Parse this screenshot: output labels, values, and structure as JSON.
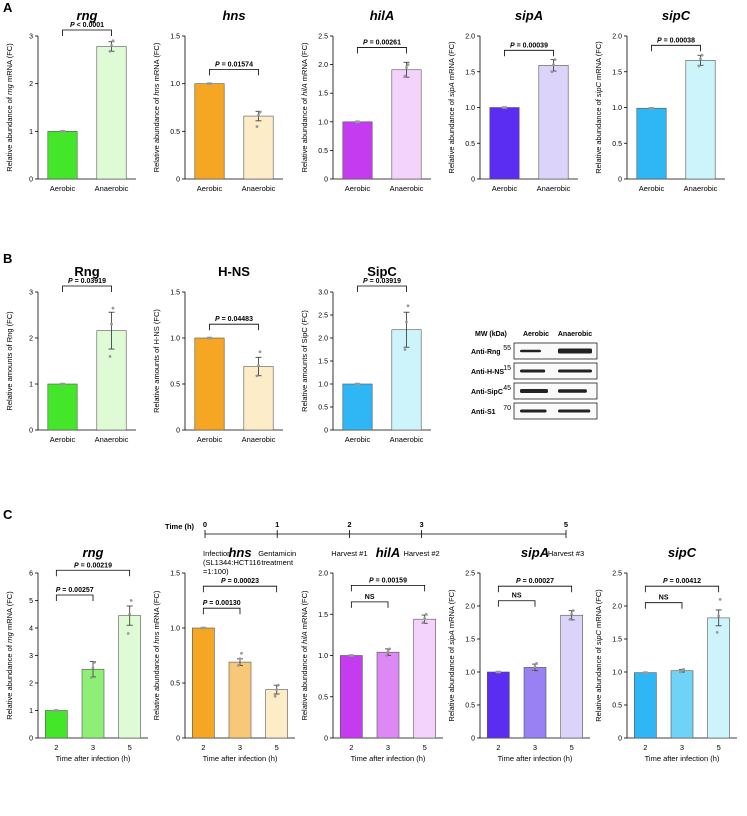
{
  "panels": {
    "A": "A",
    "B": "B",
    "C": "C"
  },
  "colors": {
    "rng": [
      "#44e62a",
      "#dffbd6"
    ],
    "hns": [
      "#f5a623",
      "#fcecc8"
    ],
    "hilA": [
      "#c53cf0",
      "#f3d2fb"
    ],
    "sipA": [
      "#5b2cf2",
      "#dcd3fb"
    ],
    "sipC": [
      "#2fb6f5",
      "#cdf4fb"
    ],
    "rngC": [
      "#44e62a",
      "#8fee76",
      "#dffbd6"
    ],
    "hnsC": [
      "#f5a623",
      "#f7c878",
      "#fcecc8"
    ],
    "hilAC": [
      "#c53cf0",
      "#dd88f5",
      "#f3d2fb"
    ],
    "sipAC": [
      "#5b2cf2",
      "#9980f3",
      "#dcd3fb"
    ],
    "sipCC": [
      "#2fb6f5",
      "#6fd2f7",
      "#cdf4fb"
    ]
  },
  "chart_data": [
    {
      "type": "bar",
      "panel": "A",
      "title": "rng",
      "ylabel_pre": "Relative abundance of ",
      "ylabel_gene": "rng",
      "ylabel_post": " mRNA (FC)",
      "ylim": [
        0,
        3
      ],
      "ticks": [
        "0",
        "1",
        "2",
        "3"
      ],
      "categories": [
        "Aerobic",
        "Anaerobic"
      ],
      "values": [
        1.0,
        2.78
      ],
      "errors": [
        0,
        0.1
      ],
      "colorKey": "rng",
      "points": [
        [
          1,
          1,
          1
        ],
        [
          2.68,
          2.8,
          2.9
        ]
      ],
      "comparisons": [
        {
          "label": "P < 0.0001",
          "from": 0,
          "to": 1,
          "level": 3.2
        }
      ]
    },
    {
      "type": "bar",
      "panel": "A",
      "title": "hns",
      "ylabel_pre": "Relative abundance of ",
      "ylabel_gene": "hns",
      "ylabel_post": " mRNA (FC)",
      "ylim": [
        0,
        1.5
      ],
      "ticks": [
        "0",
        "0.5",
        "1.0",
        "1.5"
      ],
      "categories": [
        "Aerobic",
        "Anaerobic"
      ],
      "values": [
        1.0,
        0.66
      ],
      "errors": [
        0,
        0.05
      ],
      "colorKey": "hns",
      "points": [
        [
          1,
          1,
          1
        ],
        [
          0.55,
          0.67,
          0.7
        ]
      ],
      "comparisons": [
        {
          "label": "P = 0.01574",
          "from": 0,
          "to": 1,
          "level": 1.15
        }
      ]
    },
    {
      "type": "bar",
      "panel": "A",
      "title": "hilA",
      "ylabel_pre": "Relative abundance of ",
      "ylabel_gene": "hilA",
      "ylabel_post": " mRNA (FC)",
      "ylim": [
        0,
        2.5
      ],
      "ticks": [
        "0",
        "0.5",
        "1.0",
        "1.5",
        "2.0",
        "2.5"
      ],
      "categories": [
        "Aerobic",
        "Anaerobic"
      ],
      "values": [
        1.0,
        1.91
      ],
      "errors": [
        0,
        0.13
      ],
      "colorKey": "hilA",
      "points": [
        [
          1,
          1,
          1
        ],
        [
          1.8,
          1.95,
          2.0
        ]
      ],
      "comparisons": [
        {
          "label": "P = 0.00261",
          "from": 0,
          "to": 1,
          "level": 2.3
        }
      ]
    },
    {
      "type": "bar",
      "panel": "A",
      "title": "sipA",
      "ylabel_pre": "Relative abundance of ",
      "ylabel_gene": "sipA",
      "ylabel_post": " mRNA (FC)",
      "ylim": [
        0,
        2.0
      ],
      "ticks": [
        "0",
        "0.5",
        "1.0",
        "1.5",
        "2.0"
      ],
      "categories": [
        "Aerobic",
        "Anaerobic"
      ],
      "values": [
        1.0,
        1.59
      ],
      "errors": [
        0,
        0.08
      ],
      "colorKey": "sipA",
      "points": [
        [
          1,
          1,
          1
        ],
        [
          1.5,
          1.6,
          1.67
        ]
      ],
      "comparisons": [
        {
          "label": "P = 0.00039",
          "from": 0,
          "to": 1,
          "level": 1.8
        }
      ]
    },
    {
      "type": "bar",
      "panel": "A",
      "title": "sipC",
      "ylabel_pre": "Relative abundance of ",
      "ylabel_gene": "sipC",
      "ylabel_post": " mRNA (FC)",
      "ylim": [
        0,
        2.0
      ],
      "ticks": [
        "0",
        "0.5",
        "1.0",
        "1.5",
        "2.0"
      ],
      "categories": [
        "Aerobic",
        "Anaerobic"
      ],
      "values": [
        0.99,
        1.66
      ],
      "errors": [
        0,
        0.07
      ],
      "colorKey": "sipC",
      "points": [
        [
          0.99,
          0.99,
          0.99
        ],
        [
          1.58,
          1.68,
          1.73
        ]
      ],
      "comparisons": [
        {
          "label": "P = 0.00038",
          "from": 0,
          "to": 1,
          "level": 1.87
        }
      ]
    },
    {
      "type": "bar",
      "panel": "B",
      "title": "Rng",
      "ylabel_pre": "Relative amounts of Rng (FC)",
      "ylabel_gene": "",
      "ylabel_post": "",
      "ylim": [
        0,
        3
      ],
      "ticks": [
        "0",
        "1",
        "2",
        "3"
      ],
      "categories": [
        "Aerobic",
        "Anaerobic"
      ],
      "values": [
        1.0,
        2.16
      ],
      "errors": [
        0,
        0.4
      ],
      "colorKey": "rng",
      "points": [
        [
          1,
          1,
          1
        ],
        [
          1.6,
          2.3,
          2.65
        ]
      ],
      "comparisons": [
        {
          "label": "P = 0.03919",
          "from": 0,
          "to": 1,
          "level": 3.2
        }
      ]
    },
    {
      "type": "bar",
      "panel": "B",
      "title": "H-NS",
      "ylabel_pre": "Relative amounts of H-NS (FC)",
      "ylabel_gene": "",
      "ylabel_post": "",
      "ylim": [
        0,
        1.5
      ],
      "ticks": [
        "0",
        "0.5",
        "1.0",
        "1.5"
      ],
      "categories": [
        "Aerobic",
        "Anaerobic"
      ],
      "values": [
        1.0,
        0.69
      ],
      "errors": [
        0,
        0.1
      ],
      "colorKey": "hns",
      "points": [
        [
          1,
          1,
          1
        ],
        [
          0.59,
          0.7,
          0.85
        ]
      ],
      "comparisons": [
        {
          "label": "P = 0.04483",
          "from": 0,
          "to": 1,
          "level": 1.15
        }
      ]
    },
    {
      "type": "bar",
      "panel": "B",
      "title": "SipC",
      "ylabel_pre": "Relative amounts of SipC (FC)",
      "ylabel_gene": "",
      "ylabel_post": "",
      "ylim": [
        0,
        3
      ],
      "ticks": [
        "0",
        "0.5",
        "1.0",
        "1.5",
        "2.0",
        "2.5",
        "3.0"
      ],
      "categories": [
        "Aerobic",
        "Anaerobic"
      ],
      "values": [
        1.0,
        2.18
      ],
      "errors": [
        0,
        0.38
      ],
      "colorKey": "sipC",
      "points": [
        [
          1,
          1,
          1
        ],
        [
          1.75,
          2.35,
          2.7
        ]
      ],
      "comparisons": [
        {
          "label": "P = 0.03919",
          "from": 0,
          "to": 1,
          "level": 3.2
        }
      ]
    },
    {
      "type": "bar",
      "panel": "C",
      "title": "rng",
      "ylabel_pre": "Relative abundance of ",
      "ylabel_gene": "rng",
      "ylabel_post": " mRNA (FC)",
      "ylim": [
        0,
        6
      ],
      "ticks": [
        "0",
        "1",
        "2",
        "3",
        "4",
        "5",
        "6"
      ],
      "categories": [
        "2",
        "3",
        "5"
      ],
      "values": [
        1.0,
        2.5,
        4.45
      ],
      "errors": [
        0,
        0.28,
        0.35
      ],
      "colorKey": "rngC",
      "xlabel": "Time after infection (h)",
      "points": [
        [
          1,
          1,
          1
        ],
        [
          2.2,
          2.55,
          2.75
        ],
        [
          3.8,
          4.5,
          5.0
        ]
      ],
      "comparisons": [
        {
          "label": "P = 0.00257",
          "from": 0,
          "to": 1,
          "level": 5.2
        },
        {
          "label": "P = 0.00219",
          "from": 0,
          "to": 2,
          "level": 6.1
        }
      ]
    },
    {
      "type": "bar",
      "panel": "C",
      "title": "hns",
      "ylabel_pre": "Relative abundance of ",
      "ylabel_gene": "hns",
      "ylabel_post": " mRNA (FC)",
      "ylim": [
        0,
        1.5
      ],
      "ticks": [
        "0",
        "0.5",
        "1.0",
        "1.5"
      ],
      "categories": [
        "2",
        "3",
        "5"
      ],
      "values": [
        1.0,
        0.69,
        0.44
      ],
      "errors": [
        0,
        0.03,
        0.04
      ],
      "colorKey": "hnsC",
      "xlabel": "Time after infection (h)",
      "points": [
        [
          1,
          1,
          1
        ],
        [
          0.66,
          0.72,
          0.77
        ],
        [
          0.38,
          0.44,
          0.48
        ]
      ],
      "comparisons": [
        {
          "label": "P = 0.00130",
          "from": 0,
          "to": 1,
          "level": 1.18
        },
        {
          "label": "P = 0.00023",
          "from": 0,
          "to": 2,
          "level": 1.38
        }
      ]
    },
    {
      "type": "bar",
      "panel": "C",
      "title": "hilA",
      "ylabel_pre": "Relative abundance of ",
      "ylabel_gene": "hilA",
      "ylabel_post": " mRNA (FC)",
      "ylim": [
        0,
        2.0
      ],
      "ticks": [
        "0",
        "0.5",
        "1.0",
        "1.5",
        "2.0"
      ],
      "categories": [
        "2",
        "3",
        "5"
      ],
      "values": [
        1.0,
        1.04,
        1.44
      ],
      "errors": [
        0,
        0.04,
        0.05
      ],
      "colorKey": "hilAC",
      "xlabel": "Time after infection (h)",
      "points": [
        [
          1,
          1,
          1
        ],
        [
          1.0,
          1.05,
          1.08
        ],
        [
          1.4,
          1.45,
          1.5
        ]
      ],
      "comparisons": [
        {
          "label": "NS",
          "from": 0,
          "to": 1,
          "level": 1.65
        },
        {
          "label": "P = 0.00159",
          "from": 0,
          "to": 2,
          "level": 1.85
        }
      ]
    },
    {
      "type": "bar",
      "panel": "C",
      "title": "sipA",
      "ylabel_pre": "Relative abundance of ",
      "ylabel_gene": "sipA",
      "ylabel_post": " mRNA (FC)",
      "ylim": [
        0,
        2.5
      ],
      "ticks": [
        "0",
        "0.5",
        "1.0",
        "1.5",
        "2.0",
        "2.5"
      ],
      "categories": [
        "2",
        "3",
        "5"
      ],
      "values": [
        1.0,
        1.07,
        1.86
      ],
      "errors": [
        0,
        0.05,
        0.07
      ],
      "colorKey": "sipAC",
      "xlabel": "Time after infection (h)",
      "points": [
        [
          1,
          1,
          1
        ],
        [
          1.0,
          1.08,
          1.13
        ],
        [
          1.8,
          1.88,
          1.93
        ]
      ],
      "comparisons": [
        {
          "label": "NS",
          "from": 0,
          "to": 1,
          "level": 2.08
        },
        {
          "label": "P = 0.00027",
          "from": 0,
          "to": 2,
          "level": 2.3
        }
      ]
    },
    {
      "type": "bar",
      "panel": "C",
      "title": "sipC",
      "ylabel_pre": "Relative abundance of ",
      "ylabel_gene": "sipC",
      "ylabel_post": " mRNA (FC)",
      "ylim": [
        0,
        2.5
      ],
      "ticks": [
        "0",
        "0.5",
        "1.0",
        "1.5",
        "2.0",
        "2.5"
      ],
      "categories": [
        "2",
        "3",
        "5"
      ],
      "values": [
        0.99,
        1.02,
        1.82
      ],
      "errors": [
        0,
        0.02,
        0.12
      ],
      "colorKey": "sipCC",
      "xlabel": "Time after infection (h)",
      "points": [
        [
          0.99,
          0.99,
          0.99
        ],
        [
          1.0,
          1.02,
          1.04
        ],
        [
          1.6,
          1.85,
          2.1
        ]
      ],
      "comparisons": [
        {
          "label": "NS",
          "from": 0,
          "to": 1,
          "level": 2.05
        },
        {
          "label": "P = 0.00412",
          "from": 0,
          "to": 2,
          "level": 2.3
        }
      ]
    }
  ],
  "western_blot": {
    "header_mw": "MW (kDa)",
    "header_cols": [
      "Aerobic",
      "Anaerobic"
    ],
    "rows": [
      {
        "label": "Anti-Rng",
        "mw": "55"
      },
      {
        "label": "Anti-H-NS",
        "mw": "15"
      },
      {
        "label": "Anti-SipC",
        "mw": "45"
      },
      {
        "label": "Anti-S1",
        "mw": "70"
      }
    ]
  },
  "timeline": {
    "title": "Time (h)",
    "hours": [
      0,
      1,
      2,
      3,
      5
    ],
    "ticks": [
      "0",
      "1",
      "2",
      "3",
      "5"
    ],
    "events": [
      [
        "Infection",
        "(SL1344:HCT116",
        "=1:100)"
      ],
      [
        "Gentamicin",
        "treatment"
      ],
      [
        "Harvest #1"
      ],
      [
        "Harvest #2"
      ],
      [
        "Harvest #3"
      ]
    ]
  }
}
